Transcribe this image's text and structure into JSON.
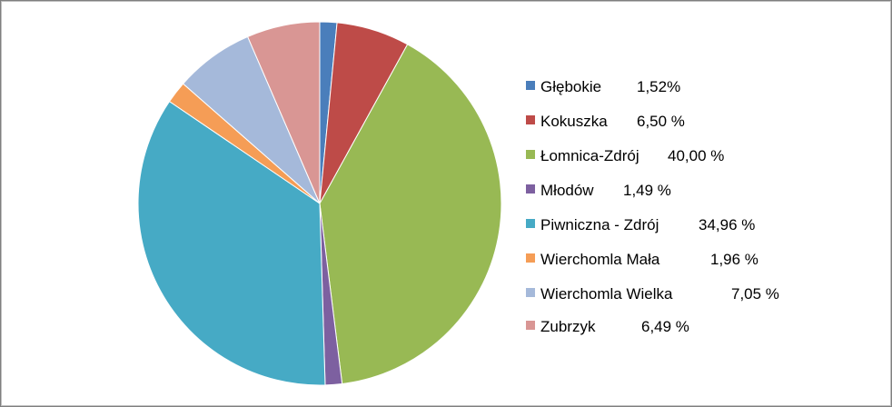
{
  "chart_data": {
    "type": "pie",
    "title": "",
    "legend_position": "right",
    "series": [
      {
        "values": [
          1.52,
          6.5,
          40.0,
          1.49,
          34.96,
          1.96,
          7.05,
          6.49
        ]
      }
    ],
    "slices": [
      {
        "label": "Głębokie",
        "value": 1.52,
        "value_label": "1,52%",
        "color": "#4a7ebb"
      },
      {
        "label": "Kokuszka",
        "value": 6.5,
        "value_label": "6,50 %",
        "color": "#be4b48"
      },
      {
        "label": "Łomnica-Zdrój",
        "value": 40.0,
        "value_label": "40,00 %",
        "color": "#98b954"
      },
      {
        "label": "Młodów",
        "value": 1.49,
        "value_label": "1,49 %",
        "color": "#7d60a0"
      },
      {
        "label": "Piwniczna - Zdrój",
        "value": 34.96,
        "value_label": "34,96 %",
        "color": "#46aac5"
      },
      {
        "label": "Wierchomla Mała",
        "value": 1.96,
        "value_label": "1,96 %",
        "color": "#f59d56"
      },
      {
        "label": "Wierchomla Wielka",
        "value": 7.05,
        "value_label": "7,05 %",
        "color": "#a5b9da"
      },
      {
        "label": "Zubrzyk",
        "value": 6.49,
        "value_label": "6,49 %",
        "color": "#d99694"
      }
    ]
  }
}
